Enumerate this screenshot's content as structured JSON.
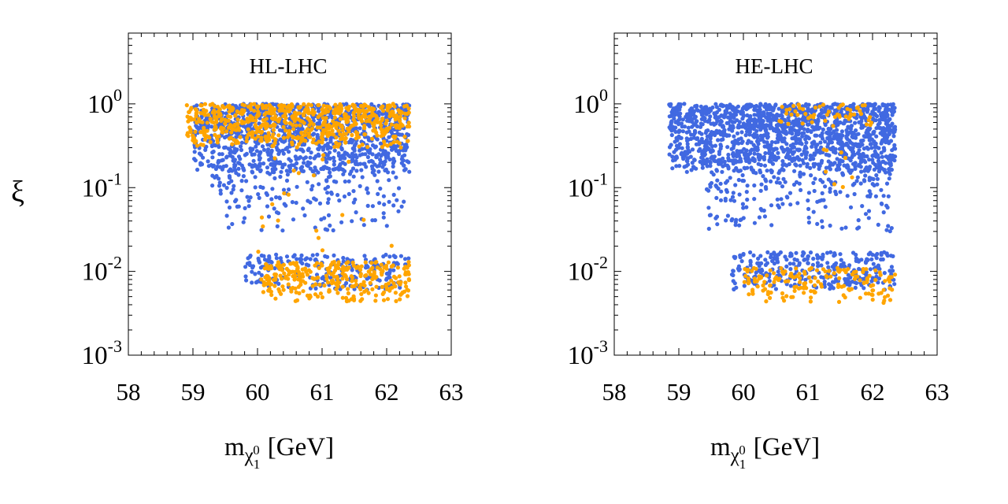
{
  "chart_data": [
    {
      "type": "scatter",
      "title": "HL-LHC",
      "xlabel": {
        "main": "m",
        "sub": "χ",
        "subsub": "1",
        "sup": "0",
        "unit": "[GeV]"
      },
      "ylabel": "ξ",
      "xlim": [
        58,
        63
      ],
      "ylim": [
        0.001,
        7
      ],
      "yscale": "log",
      "xticks": [
        "58",
        "59",
        "60",
        "61",
        "62",
        "63"
      ],
      "yticks": [
        {
          "base": "10",
          "exp": "0",
          "value": 1
        },
        {
          "base": "10",
          "exp": "-1",
          "value": 0.1
        },
        {
          "base": "10",
          "exp": "-2",
          "value": 0.01
        },
        {
          "base": "10",
          "exp": "-3",
          "value": 0.001
        }
      ],
      "colors": {
        "blue": "#4169e1",
        "orange": "#ffa500"
      },
      "series": [
        {
          "name": "blue",
          "regions": [
            {
              "x": [
                59.0,
                62.35
              ],
              "y": [
                0.15,
                1.0
              ],
              "count": 1100
            },
            {
              "x": [
                59.3,
                62.3
              ],
              "y": [
                0.03,
                0.2
              ],
              "count": 200
            },
            {
              "x": [
                59.8,
                62.35
              ],
              "y": [
                0.006,
                0.016
              ],
              "count": 220
            }
          ]
        },
        {
          "name": "orange",
          "regions": [
            {
              "x": [
                58.9,
                62.35
              ],
              "y": [
                0.3,
                1.0
              ],
              "count": 650
            },
            {
              "x": [
                60.0,
                62.35
              ],
              "y": [
                0.0042,
                0.013
              ],
              "count": 300
            },
            {
              "x": [
                60.0,
                62.3
              ],
              "y": [
                0.015,
                0.25
              ],
              "count": 20
            }
          ]
        }
      ]
    },
    {
      "type": "scatter",
      "title": "HE-LHC",
      "xlabel": {
        "main": "m",
        "sub": "χ",
        "subsub": "1",
        "sup": "0",
        "unit": "[GeV]"
      },
      "ylabel": "",
      "xlim": [
        58,
        63
      ],
      "ylim": [
        0.001,
        7
      ],
      "yscale": "log",
      "xticks": [
        "58",
        "59",
        "60",
        "61",
        "62",
        "63"
      ],
      "yticks": [
        {
          "base": "10",
          "exp": "0",
          "value": 1
        },
        {
          "base": "10",
          "exp": "-1",
          "value": 0.1
        },
        {
          "base": "10",
          "exp": "-2",
          "value": 0.01
        },
        {
          "base": "10",
          "exp": "-3",
          "value": 0.001
        }
      ],
      "colors": {
        "blue": "#4169e1",
        "orange": "#ffa500"
      },
      "series": [
        {
          "name": "blue",
          "regions": [
            {
              "x": [
                58.85,
                62.35
              ],
              "y": [
                0.15,
                1.0
              ],
              "count": 1500
            },
            {
              "x": [
                59.4,
                62.3
              ],
              "y": [
                0.03,
                0.2
              ],
              "count": 220
            },
            {
              "x": [
                59.8,
                62.35
              ],
              "y": [
                0.006,
                0.017
              ],
              "count": 300
            }
          ]
        },
        {
          "name": "orange",
          "regions": [
            {
              "x": [
                60.5,
                62.0
              ],
              "y": [
                0.5,
                1.0
              ],
              "count": 55
            },
            {
              "x": [
                60.0,
                62.35
              ],
              "y": [
                0.0042,
                0.011
              ],
              "count": 170
            },
            {
              "x": [
                61.0,
                62.0
              ],
              "y": [
                0.02,
                0.3
              ],
              "count": 8
            }
          ]
        }
      ]
    }
  ]
}
